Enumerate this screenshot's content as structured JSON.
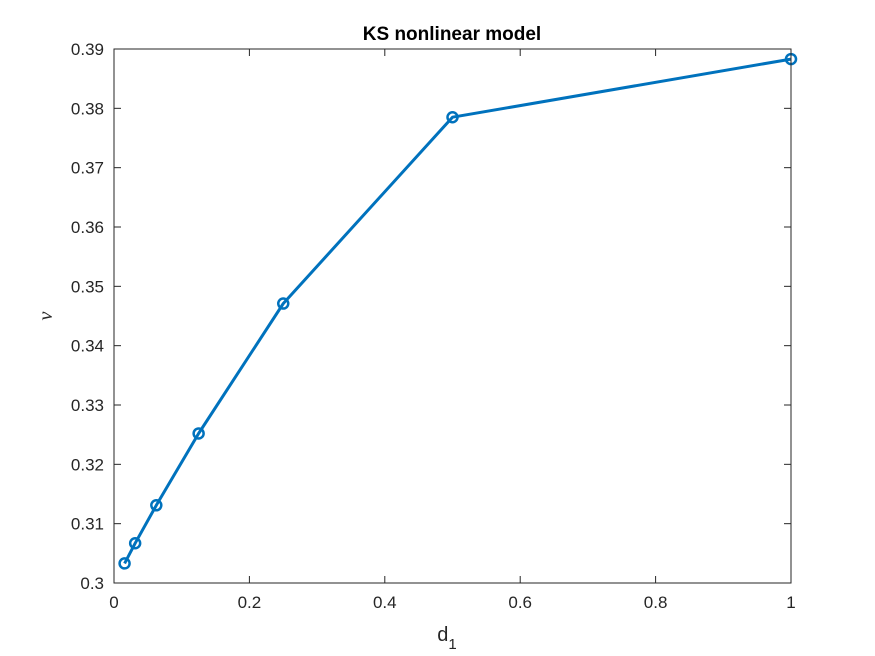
{
  "chart_data": {
    "type": "line",
    "title": "KS nonlinear model",
    "xlabel": "d",
    "xlabel_subscript": "1",
    "ylabel": "ν",
    "xlim": [
      0,
      1
    ],
    "ylim": [
      0.3,
      0.39
    ],
    "x_ticks": [
      "0",
      "0.2",
      "0.4",
      "0.6",
      "0.8",
      "1"
    ],
    "y_ticks": [
      "0.3",
      "0.31",
      "0.32",
      "0.33",
      "0.34",
      "0.35",
      "0.36",
      "0.37",
      "0.38",
      "0.39"
    ],
    "grid": false,
    "line_color": "#0072BD",
    "marker": "circle",
    "series": [
      {
        "x": [
          0.015625,
          0.03125,
          0.0625,
          0.125,
          0.25,
          0.5,
          1.0
        ],
        "y": [
          0.3033,
          0.3067,
          0.3131,
          0.3252,
          0.3471,
          0.3785,
          0.3883
        ]
      }
    ]
  }
}
